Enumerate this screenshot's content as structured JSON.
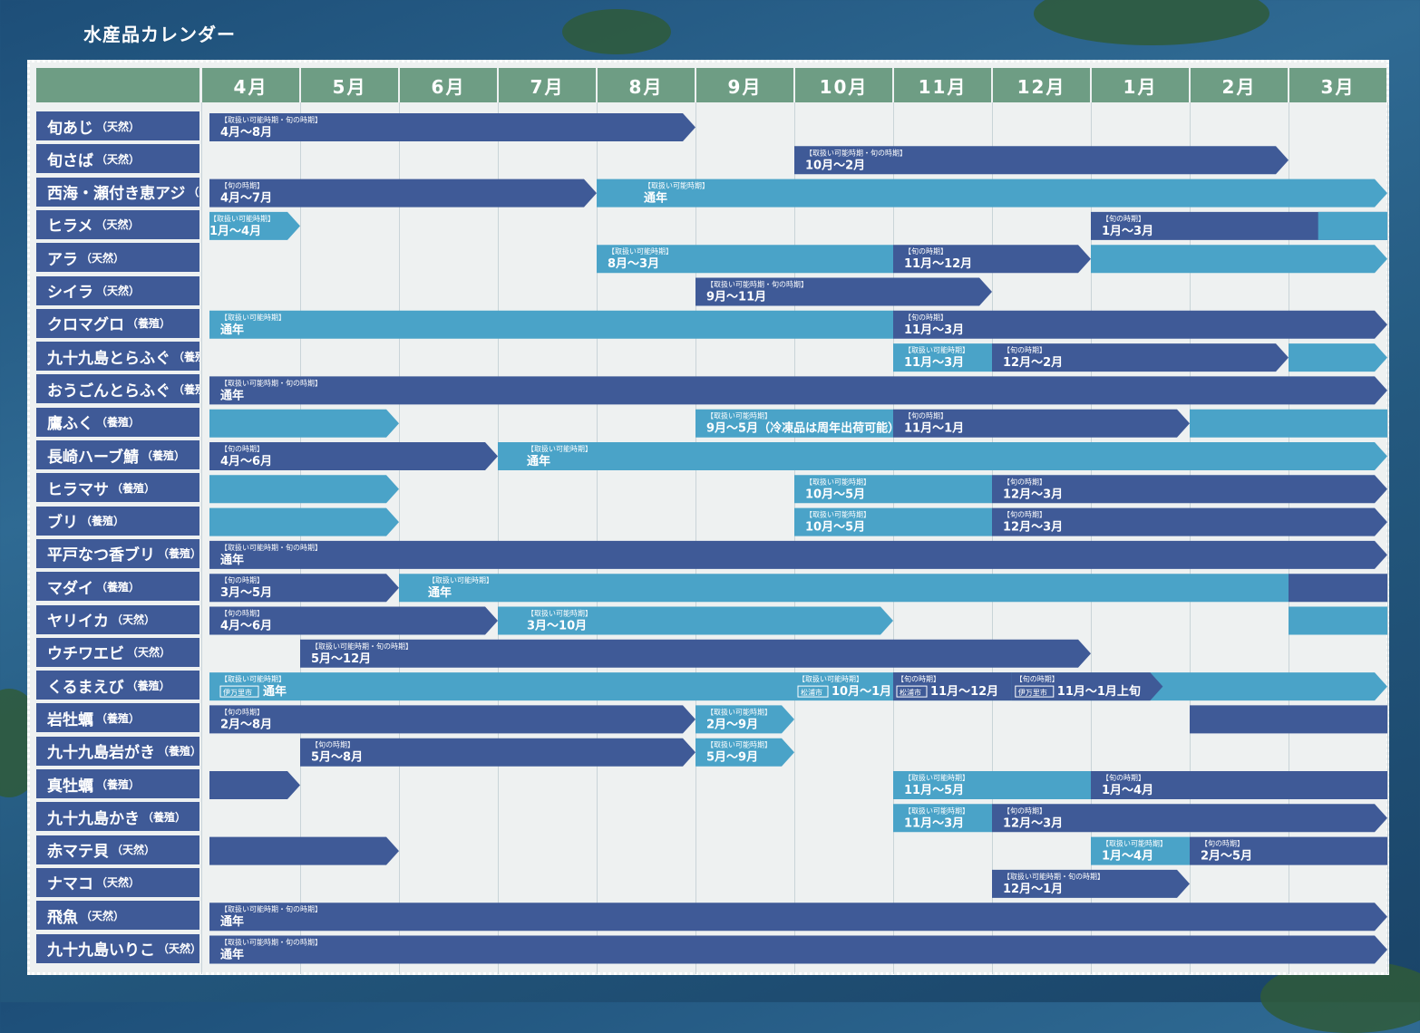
{
  "title": "水産品カレンダー",
  "colors": {
    "dark": "#3f5a97",
    "light": "#4aa3c8",
    "header": "#6e9d84"
  },
  "chart_data": {
    "type": "gantt",
    "title": "水産品カレンダー",
    "months": [
      "4月",
      "5月",
      "6月",
      "7月",
      "8月",
      "9月",
      "10月",
      "11月",
      "12月",
      "1月",
      "2月",
      "3月"
    ],
    "rows": [
      {
        "name": "旬あじ",
        "type": "（天然）",
        "bars": [
          {
            "start": 0,
            "end": 5,
            "color": "dark",
            "arrow": true,
            "note": "【取扱い可能時期・旬の時期】",
            "label": "4月～8月"
          }
        ]
      },
      {
        "name": "旬さば",
        "type": "（天然）",
        "bars": [
          {
            "start": 6,
            "end": 11,
            "color": "dark",
            "arrow": true,
            "note": "【取扱い可能時期・旬の時期】",
            "label": "10月～2月"
          }
        ]
      },
      {
        "name": "西海・瀬付き恵アジ",
        "type": "（天然）",
        "bars": [
          {
            "start": 0,
            "end": 4,
            "color": "dark",
            "arrow": true,
            "note": "【旬の時期】",
            "label": "4月～7月"
          },
          {
            "start": 4,
            "end": 12,
            "color": "light",
            "arrow": true,
            "note": "【取扱い可能時期】",
            "label": "通年",
            "labelOffset": 40
          }
        ]
      },
      {
        "name": "ヒラメ",
        "type": "（天然）",
        "bars": [
          {
            "start": 0,
            "end": 1,
            "color": "light",
            "arrow": true,
            "note": "【取扱い可能時期】",
            "label": "1月～4月",
            "labelOffset": -12
          },
          {
            "start": 9,
            "end": 12,
            "color": "dark",
            "arrow": false,
            "note": "【旬の時期】",
            "label": "1月～3月"
          },
          {
            "start": 11.3,
            "end": 12,
            "color": "light",
            "arrow": false,
            "note": "",
            "label": ""
          }
        ]
      },
      {
        "name": "アラ",
        "type": "（天然）",
        "bars": [
          {
            "start": 4,
            "end": 7,
            "color": "light",
            "arrow": false,
            "note": "【取扱い可能時期】",
            "label": "8月～3月"
          },
          {
            "start": 7,
            "end": 9,
            "color": "dark",
            "arrow": true,
            "note": "【旬の時期】",
            "label": "11月～12月"
          },
          {
            "start": 9,
            "end": 12,
            "color": "light",
            "arrow": true,
            "note": "",
            "label": ""
          }
        ]
      },
      {
        "name": "シイラ",
        "type": "（天然）",
        "bars": [
          {
            "start": 5,
            "end": 8,
            "color": "dark",
            "arrow": true,
            "note": "【取扱い可能時期・旬の時期】",
            "label": "9月～11月"
          }
        ]
      },
      {
        "name": "クロマグロ",
        "type": "（養殖）",
        "bars": [
          {
            "start": 0,
            "end": 7,
            "color": "light",
            "arrow": false,
            "note": "【取扱い可能時期】",
            "label": "通年"
          },
          {
            "start": 7,
            "end": 12,
            "color": "dark",
            "arrow": true,
            "note": "【旬の時期】",
            "label": "11月～3月"
          }
        ]
      },
      {
        "name": "九十九島とらふぐ",
        "type": "（養殖）",
        "bars": [
          {
            "start": 7,
            "end": 8,
            "color": "light",
            "arrow": false,
            "note": "【取扱い可能時期】",
            "label": "11月～3月"
          },
          {
            "start": 8,
            "end": 11,
            "color": "dark",
            "arrow": true,
            "note": "【旬の時期】",
            "label": "12月～2月"
          },
          {
            "start": 11,
            "end": 12,
            "color": "light",
            "arrow": true,
            "note": "",
            "label": ""
          }
        ]
      },
      {
        "name": "おうごんとらふぐ",
        "type": "（養殖）",
        "bars": [
          {
            "start": 0,
            "end": 12,
            "color": "dark",
            "arrow": true,
            "note": "【取扱い可能時期・旬の時期】",
            "label": "通年"
          }
        ]
      },
      {
        "name": "鷹ふく",
        "type": "（養殖）",
        "bars": [
          {
            "start": 0,
            "end": 2,
            "color": "light",
            "arrow": true,
            "note": "",
            "label": ""
          },
          {
            "start": 5,
            "end": 7,
            "color": "light",
            "arrow": false,
            "note": "【取扱い可能時期】",
            "label": "9月～5月（冷凍品は周年出荷可能）"
          },
          {
            "start": 7,
            "end": 10,
            "color": "dark",
            "arrow": true,
            "note": "【旬の時期】",
            "label": "11月～1月"
          },
          {
            "start": 10,
            "end": 12,
            "color": "light",
            "arrow": false,
            "note": "",
            "label": ""
          }
        ]
      },
      {
        "name": "長崎ハーブ鯖",
        "type": "（養殖）",
        "bars": [
          {
            "start": 0,
            "end": 3,
            "color": "dark",
            "arrow": true,
            "note": "【旬の時期】",
            "label": "4月～6月"
          },
          {
            "start": 3,
            "end": 12,
            "color": "light",
            "arrow": true,
            "note": "【取扱い可能時期】",
            "label": "通年",
            "labelOffset": 20
          }
        ]
      },
      {
        "name": "ヒラマサ",
        "type": "（養殖）",
        "bars": [
          {
            "start": 0,
            "end": 2,
            "color": "light",
            "arrow": true,
            "note": "",
            "label": ""
          },
          {
            "start": 6,
            "end": 8,
            "color": "light",
            "arrow": false,
            "note": "【取扱い可能時期】",
            "label": "10月～5月"
          },
          {
            "start": 8,
            "end": 12,
            "color": "dark",
            "arrow": true,
            "note": "【旬の時期】",
            "label": "12月～3月"
          }
        ]
      },
      {
        "name": "ブリ",
        "type": "（養殖）",
        "bars": [
          {
            "start": 0,
            "end": 2,
            "color": "light",
            "arrow": true,
            "note": "",
            "label": ""
          },
          {
            "start": 6,
            "end": 8,
            "color": "light",
            "arrow": false,
            "note": "【取扱い可能時期】",
            "label": "10月～5月"
          },
          {
            "start": 8,
            "end": 12,
            "color": "dark",
            "arrow": true,
            "note": "【旬の時期】",
            "label": "12月～3月"
          }
        ]
      },
      {
        "name": "平戸なつ香ブリ",
        "type": "（養殖）",
        "bars": [
          {
            "start": 0,
            "end": 12,
            "color": "dark",
            "arrow": true,
            "note": "【取扱い可能時期・旬の時期】",
            "label": "通年"
          }
        ]
      },
      {
        "name": "マダイ",
        "type": "（養殖）",
        "bars": [
          {
            "start": 0,
            "end": 2,
            "color": "dark",
            "arrow": true,
            "note": "【旬の時期】",
            "label": "3月～5月"
          },
          {
            "start": 2,
            "end": 11,
            "color": "light",
            "arrow": false,
            "note": "【取扱い可能時期】",
            "label": "通年",
            "labelOffset": 20
          },
          {
            "start": 11,
            "end": 12,
            "color": "dark",
            "arrow": false,
            "note": "",
            "label": ""
          }
        ]
      },
      {
        "name": "ヤリイカ",
        "type": "（天然）",
        "bars": [
          {
            "start": 0,
            "end": 3,
            "color": "dark",
            "arrow": true,
            "note": "【旬の時期】",
            "label": "4月～6月"
          },
          {
            "start": 3,
            "end": 7,
            "color": "light",
            "arrow": true,
            "note": "【取扱い可能時期】",
            "label": "3月～10月",
            "labelOffset": 20
          },
          {
            "start": 11,
            "end": 12,
            "color": "light",
            "arrow": false,
            "note": "",
            "label": ""
          }
        ]
      },
      {
        "name": "ウチワエビ",
        "type": "（天然）",
        "bars": [
          {
            "start": 1,
            "end": 9,
            "color": "dark",
            "arrow": true,
            "note": "【取扱い可能時期・旬の時期】",
            "label": "5月～12月"
          }
        ]
      },
      {
        "name": "くるまえび",
        "type": "（養殖）",
        "bars": [
          {
            "start": 0,
            "end": 12,
            "color": "light",
            "arrow": true,
            "note": "【取扱い可能時期】",
            "label": "通年",
            "tag": "伊万里市"
          }
        ],
        "extra": [
          {
            "at": 6,
            "note": "【取扱い可能時期】",
            "label": "10月～1月",
            "tag": "松浦市"
          },
          {
            "at": 7,
            "note": "【旬の時期】",
            "label": "11月～12月",
            "tag": "松浦市"
          },
          {
            "at": 8.2,
            "note": "【旬の時期】",
            "label": "11月～1月上旬",
            "tag": "伊万里市",
            "dark": true
          }
        ]
      },
      {
        "name": "岩牡蠣",
        "type": "（養殖）",
        "bars": [
          {
            "start": 0,
            "end": 5,
            "color": "dark",
            "arrow": true,
            "note": "【旬の時期】",
            "label": "2月～8月"
          },
          {
            "start": 5,
            "end": 6,
            "color": "light",
            "arrow": true,
            "note": "【取扱い可能時期】",
            "label": "2月～9月"
          },
          {
            "start": 10,
            "end": 12,
            "color": "dark",
            "arrow": false,
            "note": "",
            "label": ""
          }
        ]
      },
      {
        "name": "九十九島岩がき",
        "type": "（養殖）",
        "bars": [
          {
            "start": 1,
            "end": 5,
            "color": "dark",
            "arrow": true,
            "note": "【旬の時期】",
            "label": "5月～8月"
          },
          {
            "start": 5,
            "end": 6,
            "color": "light",
            "arrow": true,
            "note": "【取扱い可能時期】",
            "label": "5月～9月"
          }
        ]
      },
      {
        "name": "真牡蠣",
        "type": "（養殖）",
        "bars": [
          {
            "start": 0,
            "end": 1,
            "color": "dark",
            "arrow": true,
            "note": "",
            "label": ""
          },
          {
            "start": 7,
            "end": 9,
            "color": "light",
            "arrow": false,
            "note": "【取扱い可能時期】",
            "label": "11月～5月"
          },
          {
            "start": 9,
            "end": 12,
            "color": "dark",
            "arrow": false,
            "note": "【旬の時期】",
            "label": "1月～4月"
          }
        ]
      },
      {
        "name": "九十九島かき",
        "type": "（養殖）",
        "bars": [
          {
            "start": 7,
            "end": 8,
            "color": "light",
            "arrow": false,
            "note": "【取扱い可能時期】",
            "label": "11月～3月"
          },
          {
            "start": 8,
            "end": 12,
            "color": "dark",
            "arrow": true,
            "note": "【旬の時期】",
            "label": "12月～3月"
          }
        ]
      },
      {
        "name": "赤マテ貝",
        "type": "（天然）",
        "bars": [
          {
            "start": 0,
            "end": 2,
            "color": "dark",
            "arrow": true,
            "note": "",
            "label": ""
          },
          {
            "start": 9,
            "end": 10,
            "color": "light",
            "arrow": false,
            "note": "【取扱い可能時期】",
            "label": "1月～4月"
          },
          {
            "start": 10,
            "end": 12,
            "color": "dark",
            "arrow": false,
            "note": "【旬の時期】",
            "label": "2月～5月"
          }
        ]
      },
      {
        "name": "ナマコ",
        "type": "（天然）",
        "bars": [
          {
            "start": 8,
            "end": 10,
            "color": "dark",
            "arrow": true,
            "note": "【取扱い可能時期・旬の時期】",
            "label": "12月～1月"
          }
        ]
      },
      {
        "name": "飛魚",
        "type": "（天然）",
        "bars": [
          {
            "start": 0,
            "end": 12,
            "color": "dark",
            "arrow": true,
            "note": "【取扱い可能時期・旬の時期】",
            "label": "通年"
          }
        ]
      },
      {
        "name": "九十九島いりこ",
        "type": "（天然）",
        "bars": [
          {
            "start": 0,
            "end": 12,
            "color": "dark",
            "arrow": true,
            "note": "【取扱い可能時期・旬の時期】",
            "label": "通年"
          }
        ]
      }
    ]
  }
}
